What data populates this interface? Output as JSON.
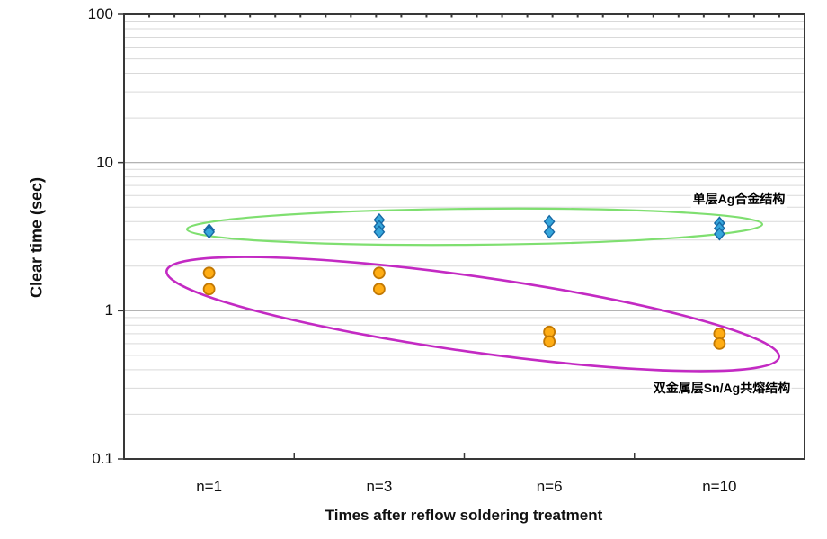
{
  "axes": {
    "y": {
      "title": "Clear time (sec)",
      "tick_labels": [
        "100",
        "10",
        "1",
        "0.1"
      ],
      "tick_values": [
        100,
        10,
        1,
        0.1
      ],
      "scale": "log"
    },
    "x": {
      "title": "Times after reflow soldering treatment",
      "tick_labels": [
        "n=1",
        "n=3",
        "n=6",
        "n=10"
      ]
    }
  },
  "annotations": [
    {
      "text": "单层Ag合金结构",
      "color": "#000000",
      "ellipse_color": "#7fdf70"
    },
    {
      "text": "双金属层Sn/Ag共熔结构",
      "color": "#000000",
      "ellipse_color": "#c32ac3"
    }
  ],
  "colors": {
    "grid_minor": "#d9d9d9",
    "grid_major": "#a8a8a8",
    "axis": "#383838",
    "green_ellipse": "#7fdf70",
    "magenta_ellipse": "#c32ac3"
  },
  "chart_data": {
    "type": "scatter",
    "title": "",
    "xlabel": "Times after reflow soldering treatment",
    "ylabel": "Clear time (sec)",
    "categories": [
      "n=1",
      "n=3",
      "n=6",
      "n=10"
    ],
    "yscale": "log",
    "ylim": [
      0.1,
      100
    ],
    "grid": "horizontal log minor+major gridlines",
    "legend_position": "none (in-plot ellipse annotations)",
    "series": [
      {
        "name": "单层Ag合金结构",
        "marker": "diamond",
        "fill": "#36a6db",
        "stroke": "#1668a4",
        "values_by_category": [
          [
            3.5,
            3.4
          ],
          [
            4.1,
            3.7,
            3.4
          ],
          [
            4.0,
            3.4
          ],
          [
            3.9,
            3.6,
            3.3
          ]
        ]
      },
      {
        "name": "双金属层Sn/Ag共熔结构",
        "marker": "circle",
        "fill": "#ffad14",
        "stroke": "#c27803",
        "values_by_category": [
          [
            1.8,
            1.4
          ],
          [
            1.8,
            1.4
          ],
          [
            0.72,
            0.62
          ],
          [
            0.7,
            0.6
          ]
        ]
      }
    ]
  }
}
